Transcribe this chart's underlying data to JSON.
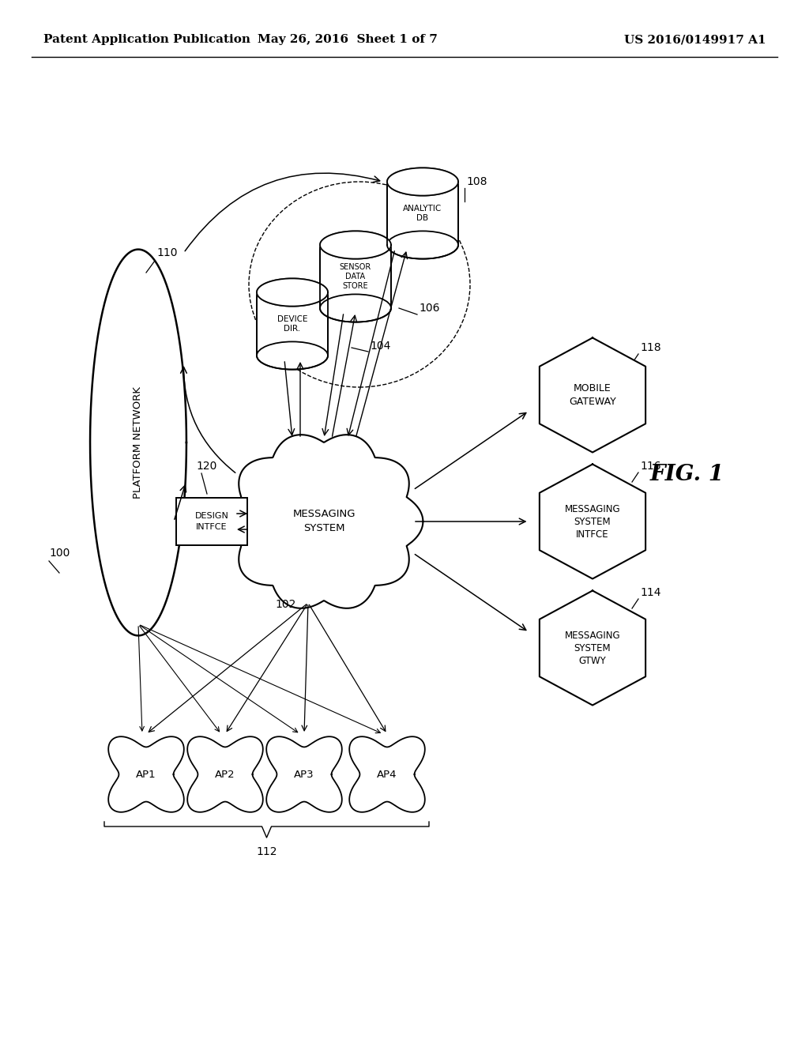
{
  "header_left": "Patent Application Publication",
  "header_mid": "May 26, 2016  Sheet 1 of 7",
  "header_right": "US 2016/0149917 A1",
  "fig_label": "FIG. 1",
  "bg_color": "#ffffff",
  "line_color": "#000000",
  "text_color": "#000000",
  "platform_network": "PLATFORM NETWORK",
  "messaging_system": "MESSAGING\nSYSTEM",
  "design_intfce": "DESIGN\nINTFCE",
  "device_dir": "DEVICE\nDIR.",
  "sensor_data_store": "SENSOR\nDATA\nSTORE",
  "analytic_db": "ANALYTIC\nDB",
  "mobile_gateway": "MOBILE\nGATEWAY",
  "msg_sys_intfce": "MESSAGING\nSYSTEM\nINTFCE",
  "msg_sys_gtwy": "MESSAGING\nSYSTEM\nGTWY",
  "ap_labels": [
    "AP1",
    "AP2",
    "AP3",
    "AP4"
  ],
  "label_100": "100",
  "label_102": "102",
  "label_104": "104",
  "label_106": "106",
  "label_108": "108",
  "label_110": "110",
  "label_112": "112",
  "label_114": "114",
  "label_116": "116",
  "label_118": "118",
  "label_120": "120"
}
